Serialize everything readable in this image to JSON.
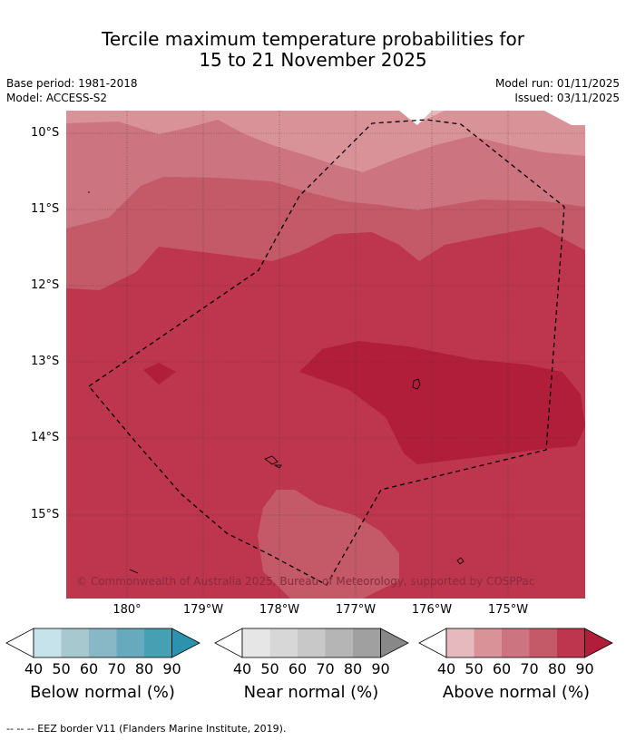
{
  "title_line1": "Tercile maximum temperature probabilities for",
  "title_line2": "15 to 21 November 2025",
  "base_period": "Base period: 1981-2018",
  "model": "Model: ACCESS-S2",
  "model_run": "Model run: 01/11/2025",
  "issued": "Issued: 03/11/2025",
  "lat_labels": [
    "10°S",
    "11°S",
    "12°S",
    "13°S",
    "14°S",
    "15°S"
  ],
  "lon_labels": [
    "180°",
    "179°W",
    "178°W",
    "177°W",
    "176°W",
    "175°W"
  ],
  "copyright": "© Commonwealth of Australia 2025, Bureau of Meteorology, supported by COSPPac",
  "colorbars": [
    {
      "label": "Below normal (%)",
      "ticks": [
        "40",
        "50",
        "60",
        "70",
        "80",
        "90"
      ],
      "colors": [
        "#c6e2ea",
        "#a6c8ce",
        "#88b8c6",
        "#68aabd",
        "#45a0b3",
        "#2b93ad"
      ]
    },
    {
      "label": "Near normal (%)",
      "ticks": [
        "40",
        "50",
        "60",
        "70",
        "80",
        "90"
      ],
      "colors": [
        "#e6e6e6",
        "#d7d7d7",
        "#c8c8c8",
        "#b5b5b5",
        "#a0a0a0",
        "#888888"
      ]
    },
    {
      "label": "Above normal (%)",
      "ticks": [
        "40",
        "50",
        "60",
        "70",
        "80",
        "90"
      ],
      "colors": [
        "#e6b9bf",
        "#da9299",
        "#cc7480",
        "#c45a68",
        "#bd364d",
        "#b01e3a"
      ]
    }
  ],
  "footnote": "--  --  -- EEZ border V11 (Flanders Marine Institute, 2019)."
}
